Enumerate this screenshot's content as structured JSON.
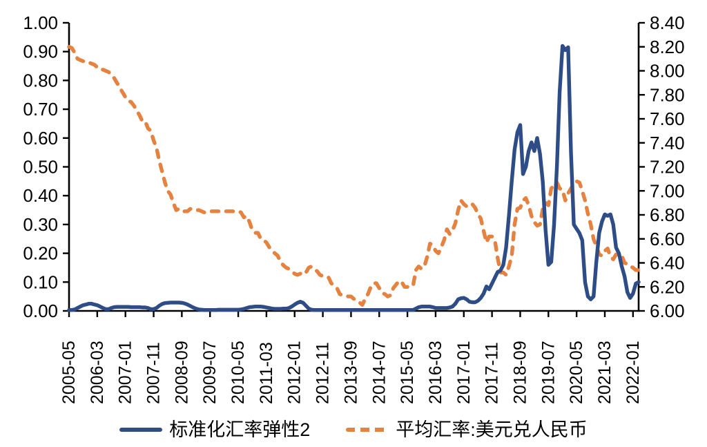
{
  "chart_data": {
    "type": "line",
    "title": "",
    "x_axis": {
      "start": "2005-05",
      "points": 203,
      "tick_interval": 10,
      "tick_labels": [
        "2005-05",
        "2006-03",
        "2007-01",
        "2007-11",
        "2008-09",
        "2009-07",
        "2010-05",
        "2011-03",
        "2012-01",
        "2012-11",
        "2013-09",
        "2014-07",
        "2015-05",
        "2016-03",
        "2017-01",
        "2017-11",
        "2018-09",
        "2019-07",
        "2020-05",
        "2021-03",
        "2022-01"
      ]
    },
    "left_axis": {
      "min": 0.0,
      "max": 1.0,
      "step": 0.1,
      "tick_labels": [
        "0.00",
        "0.10",
        "0.20",
        "0.30",
        "0.40",
        "0.50",
        "0.60",
        "0.70",
        "0.80",
        "0.90",
        "1.00"
      ]
    },
    "right_axis": {
      "min": 6.0,
      "max": 8.4,
      "step": 0.2,
      "tick_labels": [
        "6.00",
        "6.20",
        "6.40",
        "6.60",
        "6.80",
        "7.00",
        "7.20",
        "7.40",
        "7.60",
        "7.80",
        "8.00",
        "8.20",
        "8.40"
      ]
    },
    "grid": false,
    "legend_position": "bottom",
    "axis_color": "#000000",
    "series": [
      {
        "name": "标准化汇率弹性2",
        "color": "#2E4D86",
        "style": "solid",
        "axis": "left",
        "values": [
          0.003,
          0.003,
          0.005,
          0.01,
          0.015,
          0.02,
          0.022,
          0.025,
          0.025,
          0.022,
          0.02,
          0.015,
          0.01,
          0.006,
          0.006,
          0.01,
          0.013,
          0.014,
          0.014,
          0.014,
          0.014,
          0.014,
          0.013,
          0.013,
          0.013,
          0.013,
          0.012,
          0.012,
          0.01,
          0.006,
          0.006,
          0.01,
          0.018,
          0.024,
          0.027,
          0.028,
          0.029,
          0.029,
          0.029,
          0.029,
          0.028,
          0.026,
          0.022,
          0.017,
          0.012,
          0.008,
          0.005,
          0.004,
          0.003,
          0.003,
          0.003,
          0.003,
          0.003,
          0.004,
          0.004,
          0.004,
          0.004,
          0.004,
          0.004,
          0.004,
          0.004,
          0.005,
          0.007,
          0.01,
          0.013,
          0.014,
          0.015,
          0.015,
          0.015,
          0.014,
          0.012,
          0.01,
          0.008,
          0.007,
          0.007,
          0.007,
          0.008,
          0.008,
          0.01,
          0.015,
          0.022,
          0.028,
          0.032,
          0.028,
          0.018,
          0.008,
          0.004,
          0.003,
          0.003,
          0.003,
          0.003,
          0.003,
          0.003,
          0.003,
          0.003,
          0.003,
          0.003,
          0.003,
          0.003,
          0.003,
          0.003,
          0.003,
          0.003,
          0.003,
          0.003,
          0.003,
          0.003,
          0.003,
          0.003,
          0.003,
          0.003,
          0.003,
          0.003,
          0.003,
          0.003,
          0.003,
          0.003,
          0.003,
          0.003,
          0.003,
          0.003,
          0.003,
          0.003,
          0.008,
          0.013,
          0.015,
          0.015,
          0.015,
          0.015,
          0.013,
          0.01,
          0.01,
          0.01,
          0.01,
          0.01,
          0.012,
          0.015,
          0.025,
          0.04,
          0.044,
          0.045,
          0.04,
          0.032,
          0.03,
          0.03,
          0.035,
          0.045,
          0.06,
          0.085,
          0.075,
          0.095,
          0.115,
          0.135,
          0.14,
          0.16,
          0.22,
          0.33,
          0.45,
          0.56,
          0.62,
          0.645,
          0.475,
          0.5,
          0.555,
          0.585,
          0.555,
          0.6,
          0.545,
          0.45,
          0.28,
          0.16,
          0.17,
          0.3,
          0.5,
          0.76,
          0.92,
          0.905,
          0.915,
          0.55,
          0.3,
          0.285,
          0.27,
          0.245,
          0.1,
          0.05,
          0.04,
          0.05,
          0.17,
          0.27,
          0.31,
          0.335,
          0.33,
          0.335,
          0.3,
          0.22,
          0.2,
          0.155,
          0.12,
          0.065,
          0.045,
          0.06,
          0.095,
          0.1
        ]
      },
      {
        "name": "平均汇率:美元兑人民币",
        "color": "#E5823F",
        "style": "dashed",
        "axis": "right",
        "values": [
          8.2,
          8.19,
          8.15,
          8.1,
          8.09,
          8.08,
          8.08,
          8.07,
          8.06,
          8.05,
          8.03,
          8.01,
          8.01,
          8.0,
          7.99,
          7.97,
          7.94,
          7.9,
          7.86,
          7.82,
          7.78,
          7.75,
          7.74,
          7.71,
          7.67,
          7.63,
          7.58,
          7.58,
          7.52,
          7.5,
          7.42,
          7.36,
          7.25,
          7.16,
          7.07,
          7.0,
          6.97,
          6.9,
          6.84,
          6.85,
          6.83,
          6.83,
          6.83,
          6.85,
          6.84,
          6.84,
          6.84,
          6.83,
          6.82,
          6.83,
          6.83,
          6.83,
          6.83,
          6.83,
          6.83,
          6.83,
          6.83,
          6.83,
          6.83,
          6.83,
          6.83,
          6.82,
          6.78,
          6.79,
          6.74,
          6.67,
          6.65,
          6.65,
          6.6,
          6.59,
          6.57,
          6.53,
          6.5,
          6.48,
          6.46,
          6.41,
          6.38,
          6.36,
          6.35,
          6.33,
          6.31,
          6.3,
          6.31,
          6.3,
          6.32,
          6.36,
          6.37,
          6.35,
          6.33,
          6.3,
          6.29,
          6.29,
          6.28,
          6.23,
          6.21,
          6.19,
          6.14,
          6.13,
          6.13,
          6.12,
          6.12,
          6.1,
          6.09,
          6.07,
          6.05,
          6.1,
          6.14,
          6.2,
          6.23,
          6.23,
          6.19,
          6.15,
          6.14,
          6.12,
          6.13,
          6.19,
          6.22,
          6.25,
          6.24,
          6.2,
          6.2,
          6.21,
          6.21,
          6.34,
          6.37,
          6.35,
          6.37,
          6.45,
          6.56,
          6.55,
          6.5,
          6.48,
          6.53,
          6.59,
          6.68,
          6.64,
          6.67,
          6.73,
          6.84,
          6.92,
          6.89,
          6.87,
          6.89,
          6.89,
          6.86,
          6.81,
          6.77,
          6.67,
          6.57,
          6.62,
          6.62,
          6.59,
          6.44,
          6.32,
          6.32,
          6.3,
          6.37,
          6.46,
          6.72,
          6.85,
          6.86,
          6.92,
          6.94,
          6.88,
          6.79,
          6.74,
          6.71,
          6.72,
          6.85,
          6.9,
          6.88,
          7.02,
          7.05,
          7.07,
          7.02,
          7.01,
          6.92,
          6.98,
          7.02,
          7.06,
          7.08,
          7.07,
          7.0,
          6.92,
          6.81,
          6.72,
          6.6,
          6.54,
          6.47,
          6.46,
          6.5,
          6.52,
          6.45,
          6.43,
          6.47,
          6.47,
          6.46,
          6.4,
          6.39,
          6.37,
          6.36,
          6.34,
          6.34
        ]
      }
    ]
  },
  "legend": {
    "item1": "标准化汇率弹性2",
    "item2": "平均汇率:美元兑人民币"
  }
}
